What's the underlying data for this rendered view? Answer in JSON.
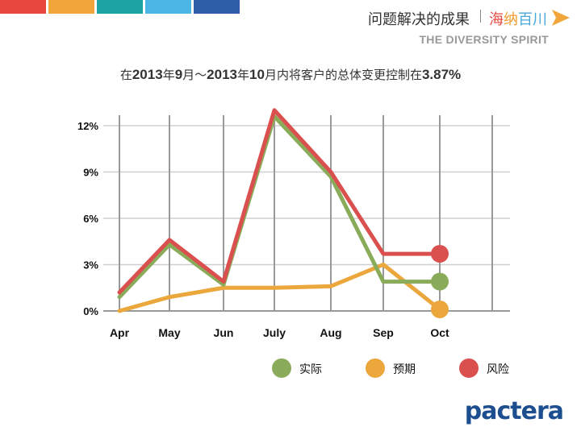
{
  "header": {
    "strip_colors": [
      "#e8473e",
      "#f0a63b",
      "#1aa3a0",
      "#4cb7e6",
      "#2f5ea8"
    ],
    "title": "问题解决的成果",
    "brand": [
      "海",
      "纳",
      "百川"
    ],
    "subtitle": "THE DIVERSITY SPIRIT",
    "arrow_color": "#f0a63b"
  },
  "headline": {
    "segments": [
      {
        "text": "在",
        "bold": false
      },
      {
        "text": "2013",
        "bold": true
      },
      {
        "text": "年",
        "bold": false
      },
      {
        "text": "9",
        "bold": true
      },
      {
        "text": "月～",
        "bold": false
      },
      {
        "text": "2013",
        "bold": true
      },
      {
        "text": "年",
        "bold": false
      },
      {
        "text": "10",
        "bold": true
      },
      {
        "text": "月内将客户的总体变更控制在",
        "bold": false
      },
      {
        "text": "3.87%",
        "bold": true
      }
    ]
  },
  "chart_data": {
    "type": "line",
    "categories": [
      "Apr",
      "May",
      "Jun",
      "July",
      "Aug",
      "Sep",
      "Oct"
    ],
    "y_ticks": [
      "0%",
      "3%",
      "6%",
      "9%",
      "12%"
    ],
    "ylim": [
      0,
      12
    ],
    "grid": true,
    "legend_position": "bottom-right",
    "series": [
      {
        "name": "实际",
        "color": "#8aab5a",
        "values": [
          0.9,
          4.3,
          1.7,
          12.6,
          8.7,
          1.9,
          1.9
        ]
      },
      {
        "name": "预期",
        "color": "#eba73c",
        "values": [
          0.0,
          0.9,
          1.5,
          1.5,
          1.6,
          3.0,
          0.1
        ]
      },
      {
        "name": "风险",
        "color": "#d9504f",
        "values": [
          1.2,
          4.6,
          1.9,
          13.0,
          9.0,
          3.7,
          3.7
        ]
      }
    ]
  },
  "footer": {
    "logo": "pactera"
  }
}
